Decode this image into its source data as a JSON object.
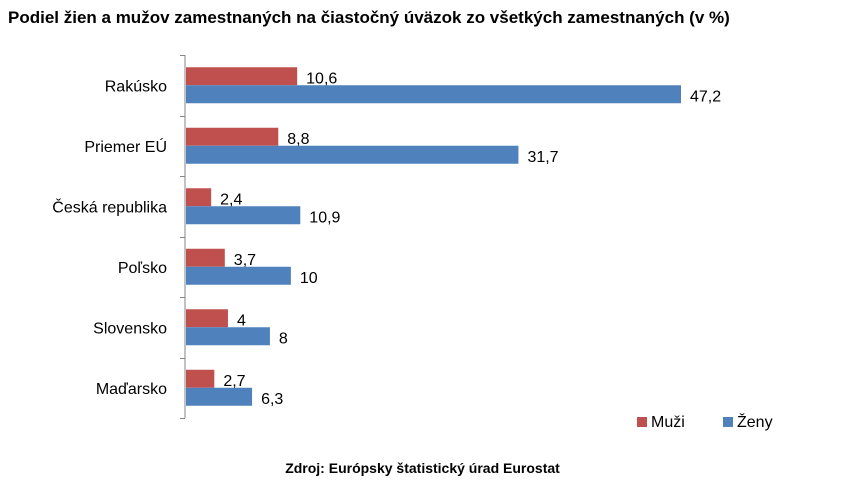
{
  "chart_data": {
    "type": "bar",
    "orientation": "horizontal",
    "title": "Podiel žien a mužov zamestnaných na čiastočný úväzok zo všetkých zamestnaných (v %)",
    "categories": [
      "Rakúsko",
      "Priemer EÚ",
      "Česká republika",
      "Poľsko",
      "Slovensko",
      "Maďarsko"
    ],
    "series": [
      {
        "name": "Muži",
        "color": "#c0504d",
        "values": [
          10.6,
          8.8,
          2.4,
          3.7,
          4,
          2.7
        ],
        "labels": [
          "10,6",
          "8,8",
          "2,4",
          "3,7",
          "4",
          "2,7"
        ]
      },
      {
        "name": "Ženy",
        "color": "#4f81bd",
        "values": [
          47.2,
          31.7,
          10.9,
          10,
          8,
          6.3
        ],
        "labels": [
          "47,2",
          "31,7",
          "10,9",
          "10",
          "8",
          "6,3"
        ]
      }
    ],
    "xlim": [
      0,
      50
    ],
    "grid": false,
    "legend_position": "bottom-right",
    "source": "Zdroj: Európsky štatistický úrad Eurostat"
  }
}
